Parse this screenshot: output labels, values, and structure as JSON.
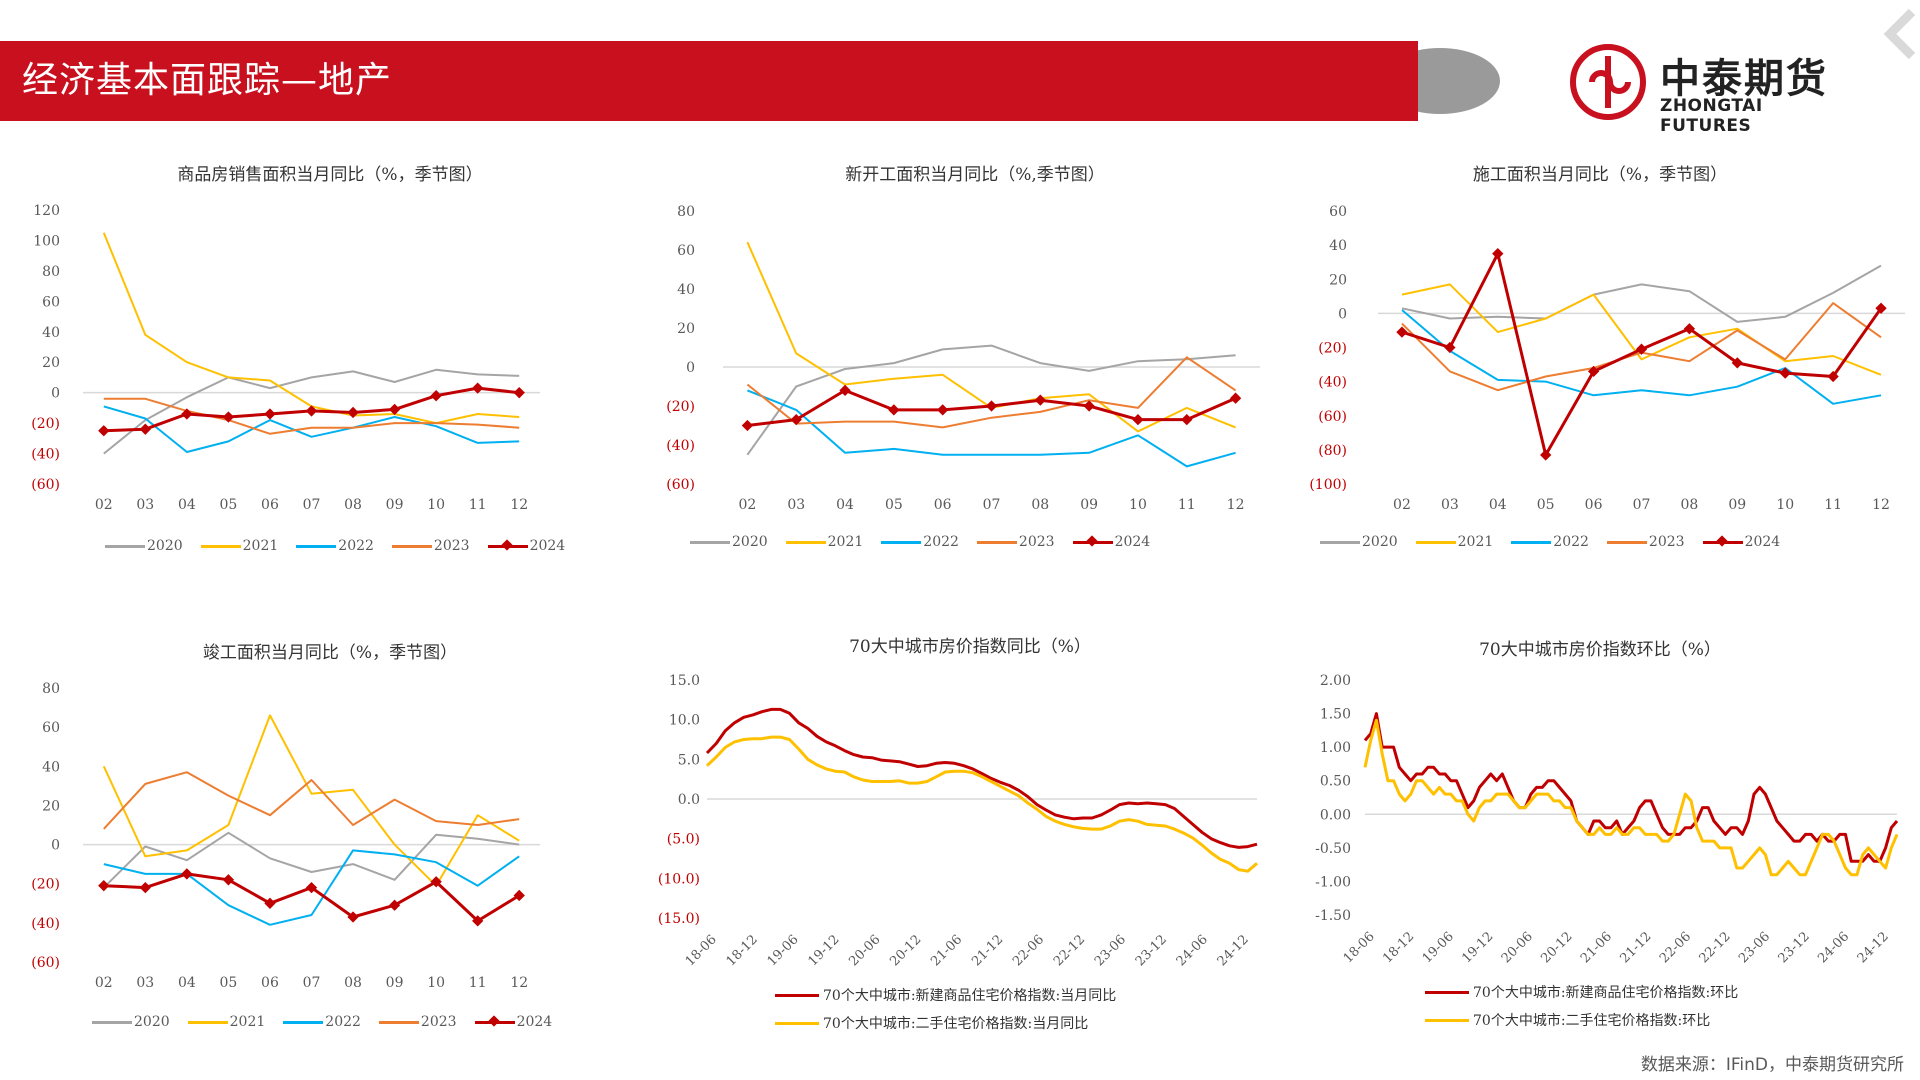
{
  "header": {
    "title": "经济基本面跟踪—地产"
  },
  "logo": {
    "cn": "中泰期货",
    "en": "ZHONGTAI FUTURES"
  },
  "source_note": "数据来源：IFinD，中泰期货研究所",
  "colors": {
    "2020": "#a5a5a5",
    "2021": "#ffc000",
    "2022": "#00b0f0",
    "2023": "#ed7d31",
    "2024": "#c00000",
    "neg_label": "#c00000",
    "brand_red": "#c8101e"
  },
  "chart_data": [
    {
      "id": "sales",
      "type": "line",
      "title": "商品房销售面积当月同比（%，季节图）",
      "categories": [
        "02",
        "03",
        "04",
        "05",
        "06",
        "07",
        "08",
        "09",
        "10",
        "11",
        "12"
      ],
      "ylim": [
        -60,
        120
      ],
      "yticks": [
        "120",
        "100",
        "80",
        "60",
        "40",
        "20",
        "0",
        "(20)",
        "(40)",
        "(60)"
      ],
      "series": [
        {
          "name": "2020",
          "values": [
            -40,
            -18,
            -3,
            10,
            3,
            10,
            14,
            7,
            15,
            12,
            11
          ]
        },
        {
          "name": "2021",
          "values": [
            105,
            38,
            20,
            10,
            8,
            -9,
            -15,
            -14,
            -20,
            -14,
            -16
          ]
        },
        {
          "name": "2022",
          "values": [
            -9,
            -17,
            -39,
            -32,
            -18,
            -29,
            -23,
            -16,
            -22,
            -33,
            -32
          ]
        },
        {
          "name": "2023",
          "values": [
            -4,
            -4,
            -12,
            -18,
            -27,
            -23,
            -23,
            -20,
            -20,
            -21,
            -23
          ]
        },
        {
          "name": "2024",
          "values": [
            -25,
            -24,
            -14,
            -16,
            -14,
            -12,
            -13,
            -11,
            -2,
            3,
            0
          ]
        }
      ]
    },
    {
      "id": "starts",
      "type": "line",
      "title": "新开工面积当月同比（%,季节图）",
      "categories": [
        "02",
        "03",
        "04",
        "05",
        "06",
        "07",
        "08",
        "09",
        "10",
        "11",
        "12"
      ],
      "ylim": [
        -60,
        80
      ],
      "yticks": [
        "80",
        "60",
        "40",
        "20",
        "0",
        "(20)",
        "(40)",
        "(60)"
      ],
      "series": [
        {
          "name": "2020",
          "values": [
            -45,
            -10,
            -1,
            2,
            9,
            11,
            2,
            -2,
            3,
            4,
            6
          ]
        },
        {
          "name": "2021",
          "values": [
            64,
            7,
            -9,
            -6,
            -4,
            -21,
            -16,
            -14,
            -33,
            -21,
            -31
          ]
        },
        {
          "name": "2022",
          "values": [
            -12,
            -22,
            -44,
            -42,
            -45,
            -45,
            -45,
            -44,
            -35,
            -51,
            -44
          ]
        },
        {
          "name": "2023",
          "values": [
            -9,
            -29,
            -28,
            -28,
            -31,
            -26,
            -23,
            -17,
            -21,
            5,
            -12
          ]
        },
        {
          "name": "2024",
          "values": [
            -30,
            -27,
            -12,
            -22,
            -22,
            -20,
            -17,
            -20,
            -27,
            -27,
            -16
          ]
        }
      ]
    },
    {
      "id": "construction",
      "type": "line",
      "title": "施工面积当月同比（%，季节图）",
      "categories": [
        "02",
        "03",
        "04",
        "05",
        "06",
        "07",
        "08",
        "09",
        "10",
        "11",
        "12"
      ],
      "ylim": [
        -100,
        60
      ],
      "yticks": [
        "60",
        "40",
        "20",
        "0",
        "(20)",
        "(40)",
        "(60)",
        "(80)",
        "(100)"
      ],
      "series": [
        {
          "name": "2020",
          "values": [
            3,
            -3,
            -2,
            -3,
            11,
            17,
            13,
            -5,
            -2,
            12,
            28
          ]
        },
        {
          "name": "2021",
          "values": [
            11,
            17,
            -11,
            -3,
            11,
            -27,
            -14,
            -9,
            -28,
            -25,
            -36
          ]
        },
        {
          "name": "2022",
          "values": [
            2,
            -22,
            -39,
            -40,
            -48,
            -45,
            -48,
            -43,
            -32,
            -53,
            -48
          ]
        },
        {
          "name": "2023",
          "values": [
            -6,
            -34,
            -45,
            -37,
            -32,
            -23,
            -28,
            -10,
            -27,
            6,
            -14
          ]
        },
        {
          "name": "2024",
          "values": [
            -11,
            -20,
            35,
            -83,
            -34,
            -21,
            -9,
            -29,
            -35,
            -37,
            3
          ]
        }
      ]
    },
    {
      "id": "completions",
      "type": "line",
      "title": "竣工面积当月同比（%，季节图）",
      "categories": [
        "02",
        "03",
        "04",
        "05",
        "06",
        "07",
        "08",
        "09",
        "10",
        "11",
        "12"
      ],
      "ylim": [
        -60,
        80
      ],
      "yticks": [
        "80",
        "60",
        "40",
        "20",
        "0",
        "(20)",
        "(40)",
        "(60)"
      ],
      "series": [
        {
          "name": "2020",
          "values": [
            -22,
            -1,
            -8,
            6,
            -7,
            -14,
            -10,
            -18,
            5,
            3,
            0
          ]
        },
        {
          "name": "2021",
          "values": [
            40,
            -6,
            -3,
            10,
            66,
            26,
            28,
            0,
            -21,
            15,
            2
          ]
        },
        {
          "name": "2022",
          "values": [
            -10,
            -15,
            -15,
            -31,
            -41,
            -36,
            -3,
            -5,
            -9,
            -21,
            -6
          ]
        },
        {
          "name": "2023",
          "values": [
            8,
            31,
            37,
            25,
            15,
            33,
            10,
            23,
            12,
            10,
            13
          ]
        },
        {
          "name": "2024",
          "values": [
            -21,
            -22,
            -15,
            -18,
            -30,
            -22,
            -37,
            -31,
            -19,
            -39,
            -26
          ]
        }
      ]
    },
    {
      "id": "price_yoy",
      "type": "line",
      "title": "70大中城市房价指数同比（%）",
      "xticks": [
        "18-06",
        "18-12",
        "19-06",
        "19-12",
        "20-06",
        "20-12",
        "21-06",
        "21-12",
        "22-06",
        "22-12",
        "23-06",
        "23-12",
        "24-06",
        "24-12"
      ],
      "ylim": [
        -15,
        15
      ],
      "yticks": [
        "15.0",
        "10.0",
        "5.0",
        "0.0",
        "(5.0)",
        "(10.0)",
        "(15.0)"
      ],
      "series": [
        {
          "name": "70个大中城市:新建商品住宅价格指数:当月同比",
          "values": [
            5.8,
            7,
            8.6,
            9.6,
            10.3,
            10.6,
            11,
            11.3,
            11.3,
            10.8,
            9.6,
            8.9,
            7.9,
            7.2,
            6.7,
            6.1,
            5.6,
            5.3,
            5.2,
            4.9,
            4.8,
            4.7,
            4.4,
            4.1,
            4.2,
            4.5,
            4.6,
            4.5,
            4.2,
            3.8,
            3.2,
            2.6,
            2.1,
            1.7,
            1.1,
            0.3,
            -0.7,
            -1.4,
            -2,
            -2.3,
            -2.5,
            -2.4,
            -2.4,
            -2,
            -1.4,
            -0.7,
            -0.5,
            -0.6,
            -0.5,
            -0.6,
            -0.7,
            -1.2,
            -2.2,
            -3.2,
            -4.2,
            -5,
            -5.5,
            -5.9,
            -6.1,
            -6,
            -5.7
          ]
        },
        {
          "name": "70个大中城市:二手住宅价格指数:当月同比",
          "values": [
            4.2,
            5.3,
            6.5,
            7.2,
            7.5,
            7.6,
            7.6,
            7.8,
            7.8,
            7.5,
            6.3,
            5,
            4.3,
            3.8,
            3.5,
            3.4,
            2.8,
            2.4,
            2.2,
            2.2,
            2.2,
            2.3,
            2,
            2,
            2.2,
            2.8,
            3.4,
            3.5,
            3.5,
            3.3,
            2.8,
            2.2,
            1.6,
            1,
            0.4,
            -0.5,
            -1.3,
            -2.2,
            -2.8,
            -3.2,
            -3.5,
            -3.7,
            -3.8,
            -3.8,
            -3.4,
            -2.8,
            -2.6,
            -2.8,
            -3.2,
            -3.3,
            -3.4,
            -3.8,
            -4.3,
            -4.9,
            -5.8,
            -6.8,
            -7.6,
            -8.1,
            -8.9,
            -9.1,
            -8.1
          ]
        }
      ]
    },
    {
      "id": "price_mom",
      "type": "line",
      "title": "70大中城市房价指数环比（%）",
      "xticks": [
        "18-06",
        "18-12",
        "19-06",
        "19-12",
        "20-06",
        "20-12",
        "21-06",
        "21-12",
        "22-06",
        "22-12",
        "23-06",
        "23-12",
        "24-06",
        "24-12"
      ],
      "ylim": [
        -1.5,
        2.0
      ],
      "yticks": [
        "2.00",
        "1.50",
        "1.00",
        "0.50",
        "0.00",
        "-0.50",
        "-1.00",
        "-1.50"
      ],
      "series": [
        {
          "name": "70个大中城市:新建商品住宅价格指数:环比",
          "values": [
            1.1,
            1.2,
            1.5,
            1,
            1,
            1,
            0.7,
            0.6,
            0.5,
            0.6,
            0.6,
            0.7,
            0.7,
            0.6,
            0.6,
            0.5,
            0.5,
            0.3,
            0.1,
            0.2,
            0.4,
            0.5,
            0.6,
            0.5,
            0.6,
            0.4,
            0.2,
            0.1,
            0.1,
            0.3,
            0.4,
            0.4,
            0.5,
            0.5,
            0.4,
            0.3,
            0.2,
            -0.1,
            -0.2,
            -0.3,
            -0.1,
            -0.1,
            -0.2,
            -0.2,
            -0.1,
            -0.3,
            -0.2,
            -0.1,
            0.1,
            0.2,
            0.2,
            0,
            -0.2,
            -0.3,
            -0.3,
            -0.3,
            -0.2,
            -0.2,
            -0.1,
            0.1,
            0.1,
            -0.1,
            -0.2,
            -0.3,
            -0.2,
            -0.2,
            -0.3,
            -0.1,
            0.3,
            0.4,
            0.3,
            0.1,
            -0.1,
            -0.2,
            -0.3,
            -0.4,
            -0.4,
            -0.3,
            -0.3,
            -0.4,
            -0.3,
            -0.4,
            -0.4,
            -0.3,
            -0.3,
            -0.7,
            -0.7,
            -0.7,
            -0.6,
            -0.7,
            -0.7,
            -0.5,
            -0.2,
            -0.1
          ]
        },
        {
          "name": "70个大中城市:二手住宅价格指数:环比",
          "values": [
            0.7,
            1.1,
            1.4,
            0.9,
            0.5,
            0.5,
            0.3,
            0.2,
            0.3,
            0.5,
            0.5,
            0.4,
            0.3,
            0.4,
            0.3,
            0.3,
            0.2,
            0.2,
            0,
            -0.1,
            0.1,
            0.2,
            0.2,
            0.3,
            0.3,
            0.3,
            0.2,
            0.1,
            0.1,
            0.2,
            0.3,
            0.3,
            0.3,
            0.2,
            0.2,
            0.1,
            0.1,
            -0.1,
            -0.2,
            -0.3,
            -0.3,
            -0.2,
            -0.3,
            -0.3,
            -0.2,
            -0.3,
            -0.3,
            -0.2,
            -0.2,
            -0.3,
            -0.3,
            -0.3,
            -0.4,
            -0.4,
            -0.3,
            0,
            0.3,
            0.2,
            -0.2,
            -0.4,
            -0.4,
            -0.4,
            -0.5,
            -0.5,
            -0.5,
            -0.8,
            -0.8,
            -0.7,
            -0.6,
            -0.5,
            -0.6,
            -0.9,
            -0.9,
            -0.8,
            -0.7,
            -0.8,
            -0.9,
            -0.9,
            -0.7,
            -0.5,
            -0.3,
            -0.3,
            -0.4,
            -0.6,
            -0.8,
            -0.9,
            -0.9,
            -0.6,
            -0.5,
            -0.6,
            -0.7,
            -0.8,
            -0.5,
            -0.3
          ]
        }
      ]
    }
  ]
}
